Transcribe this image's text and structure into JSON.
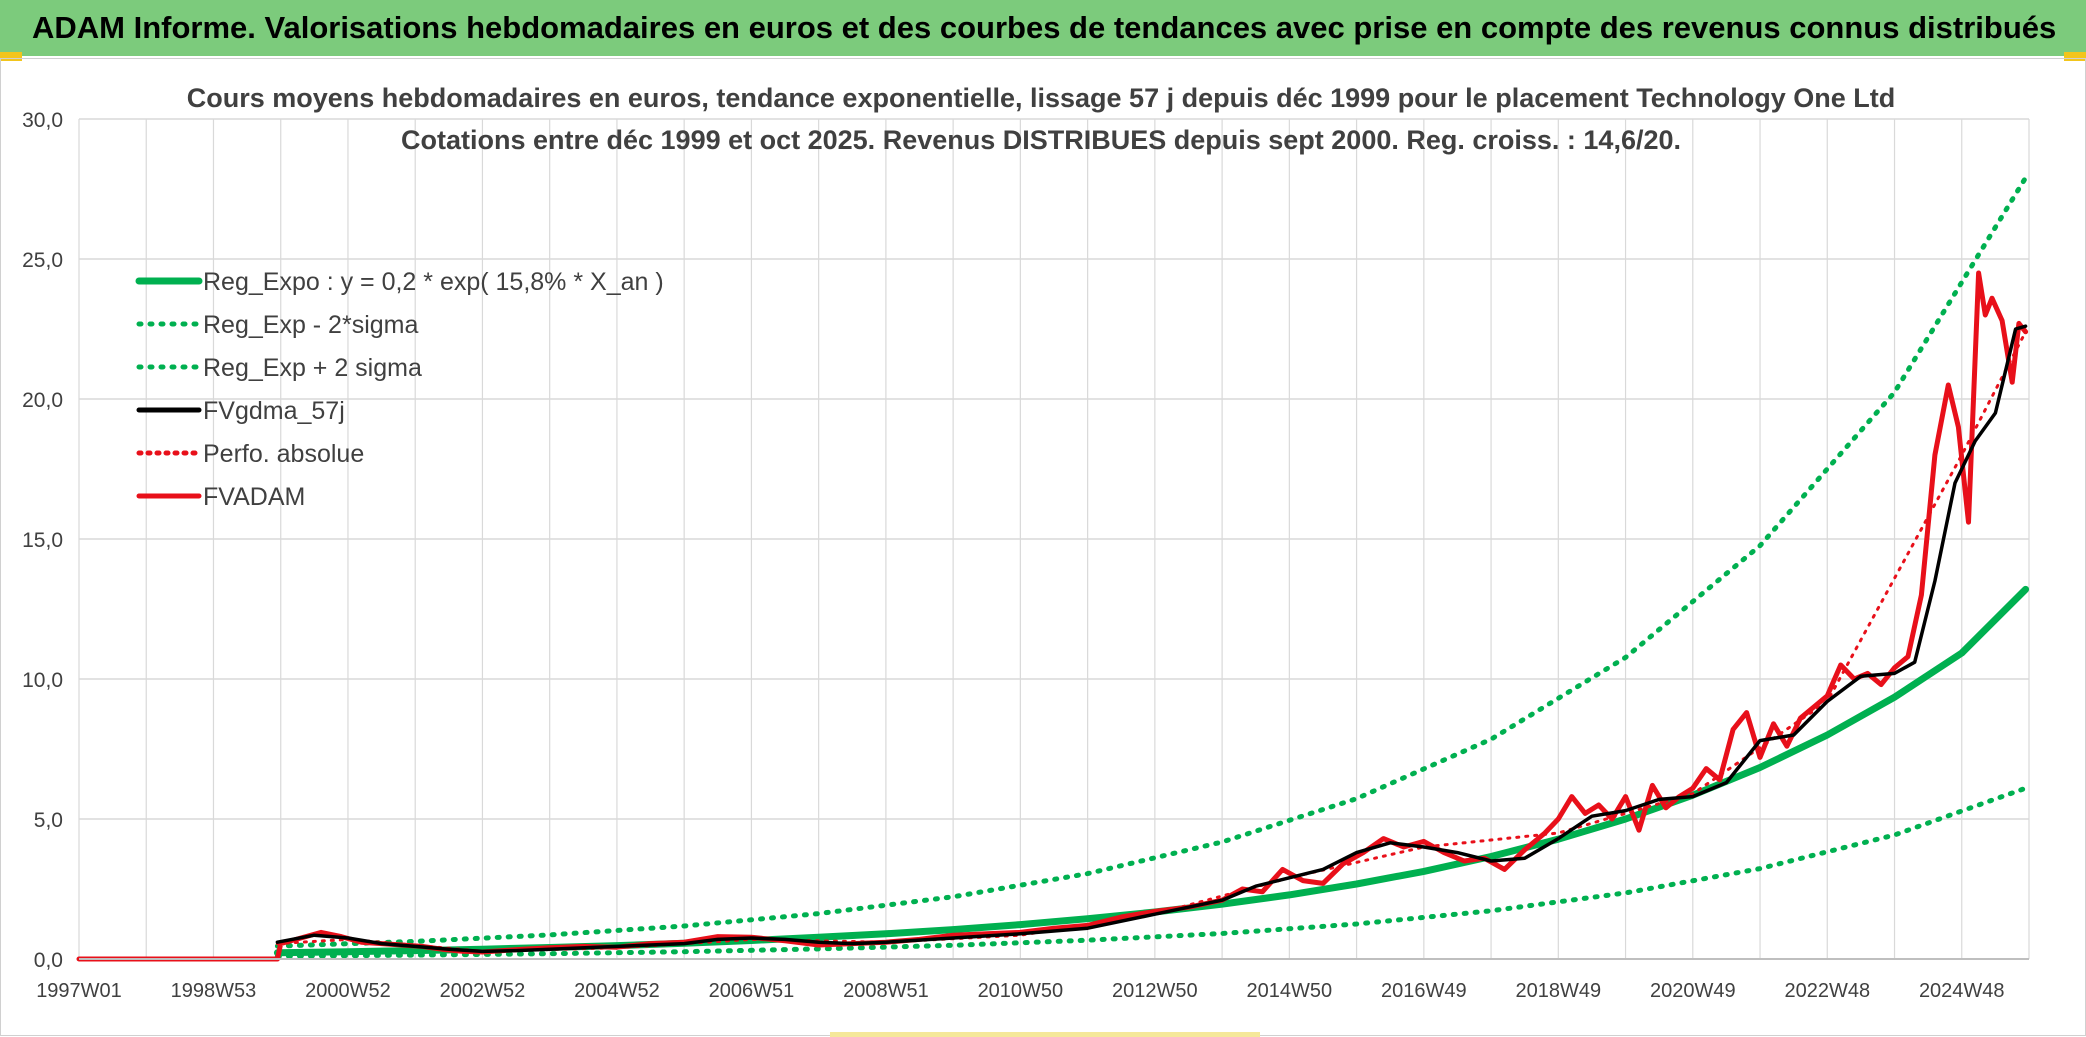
{
  "header": {
    "title": "ADAM Informe. Valorisations hebdomadaires en euros et des courbes de tendances avec prise en compte des revenus connus distribués"
  },
  "colors": {
    "banner": "#7ccb7c",
    "trend": "#00b050",
    "smooth": "#000000",
    "fvadam": "#e8101a",
    "perfo": "#e8101a",
    "grid": "#d9d9d9"
  },
  "chart_data": {
    "type": "line",
    "title": "Cours moyens hebdomadaires en euros, tendance exponentielle, lissage 57 j depuis déc 1999 pour le placement Technology One Ltd",
    "subtitle": "Cotations entre déc 1999 et oct 2025. Revenus DISTRIBUES depuis sept 2000. Reg. croiss. : 14,6/20.",
    "xlabel": "",
    "ylabel": "",
    "x_tick_labels": [
      "1997W01",
      "1998W53",
      "2000W52",
      "2002W52",
      "2004W52",
      "2006W51",
      "2008W51",
      "2010W50",
      "2012W50",
      "2014W50",
      "2016W49",
      "2018W49",
      "2020W49",
      "2022W48",
      "2024W48"
    ],
    "x_tick_years": [
      1997.0,
      1999.0,
      2001.0,
      2003.0,
      2005.0,
      2007.0,
      2009.0,
      2011.0,
      2013.0,
      2015.0,
      2017.0,
      2019.0,
      2021.0,
      2023.0,
      2025.0
    ],
    "xlim": [
      1997.0,
      2026.0
    ],
    "y_tick_labels": [
      "0,0",
      "5,0",
      "10,0",
      "15,0",
      "20,0",
      "25,0",
      "30,0"
    ],
    "ylim": [
      0,
      30
    ],
    "grid": true,
    "legend_position": "top-left",
    "series": [
      {
        "name": "Reg_Expo : y = 0,2 * exp( 15,8% *  X_an )",
        "style": "solid-thick",
        "x": [
          1999.95,
          2001,
          2002,
          2003,
          2004,
          2005,
          2006,
          2007,
          2008,
          2009,
          2010,
          2011,
          2012,
          2013,
          2014,
          2015,
          2016,
          2017,
          2018,
          2019,
          2020,
          2021,
          2022,
          2023,
          2024,
          2025,
          2025.95
        ],
        "values": [
          0.22,
          0.26,
          0.3,
          0.35,
          0.41,
          0.48,
          0.56,
          0.66,
          0.78,
          0.9,
          1.05,
          1.23,
          1.44,
          1.68,
          1.96,
          2.29,
          2.68,
          3.13,
          3.66,
          4.28,
          5.0,
          5.85,
          6.84,
          8.0,
          9.35,
          10.93,
          13.2
        ]
      },
      {
        "name": "Reg_Exp - 2*sigma",
        "style": "dotted",
        "x": [
          1999.95,
          2002,
          2004,
          2006,
          2008,
          2010,
          2012,
          2014,
          2016,
          2018,
          2020,
          2022,
          2024,
          2025.95
        ],
        "values": [
          0.1,
          0.14,
          0.19,
          0.26,
          0.36,
          0.49,
          0.67,
          0.91,
          1.25,
          1.72,
          2.36,
          3.23,
          4.43,
          6.1
        ]
      },
      {
        "name": "Reg_Exp + 2 sigma",
        "style": "dotted",
        "x": [
          1999.95,
          2002,
          2004,
          2006,
          2008,
          2010,
          2012,
          2014,
          2016,
          2018,
          2020,
          2022,
          2024,
          2025.95
        ],
        "values": [
          0.46,
          0.63,
          0.86,
          1.18,
          1.62,
          2.22,
          3.05,
          4.18,
          5.73,
          7.85,
          10.77,
          14.76,
          20.24,
          27.9
        ]
      },
      {
        "name": "FVgdma_57j",
        "style": "solid",
        "x": [
          1999.95,
          2000.5,
          2001,
          2001.5,
          2002,
          2002.5,
          2003,
          2003.5,
          2004,
          2005,
          2006,
          2006.5,
          2007,
          2007.5,
          2008,
          2008.5,
          2009,
          2010,
          2011,
          2012,
          2013,
          2014,
          2014.5,
          2015,
          2015.5,
          2016,
          2016.5,
          2017,
          2017.5,
          2018,
          2018.5,
          2019,
          2019.5,
          2020,
          2020.5,
          2021,
          2021.5,
          2022,
          2022.5,
          2023,
          2023.5,
          2024,
          2024.3,
          2024.6,
          2024.9,
          2025.2,
          2025.5,
          2025.8,
          2025.95
        ],
        "values": [
          0.6,
          0.85,
          0.75,
          0.55,
          0.45,
          0.35,
          0.27,
          0.3,
          0.35,
          0.45,
          0.55,
          0.7,
          0.75,
          0.7,
          0.6,
          0.55,
          0.6,
          0.75,
          0.9,
          1.1,
          1.6,
          2.1,
          2.6,
          2.9,
          3.2,
          3.8,
          4.15,
          4.0,
          3.8,
          3.5,
          3.6,
          4.3,
          5.1,
          5.3,
          5.7,
          5.8,
          6.3,
          7.8,
          8.0,
          9.2,
          10.1,
          10.2,
          10.6,
          13.5,
          17.0,
          18.5,
          19.5,
          22.5,
          22.6
        ]
      },
      {
        "name": "Perfo. absolue",
        "style": "dotted",
        "x": [
          1999.95,
          2001,
          2003,
          2005,
          2007,
          2009,
          2011,
          2013,
          2015,
          2017,
          2019,
          2021,
          2023,
          2025,
          2025.95
        ],
        "values": [
          0.55,
          0.7,
          0.28,
          0.4,
          0.7,
          0.6,
          0.85,
          1.6,
          2.9,
          4.0,
          4.5,
          5.9,
          9.2,
          18.0,
          22.4
        ]
      },
      {
        "name": "FVADAM",
        "style": "solid-thick",
        "x": [
          1997.0,
          1999.95,
          2000.0,
          2000.3,
          2000.6,
          2000.9,
          2001.2,
          2001.5,
          2001.8,
          2002.1,
          2002.4,
          2002.7,
          2003.0,
          2003.3,
          2003.6,
          2004.0,
          2004.5,
          2005.0,
          2005.5,
          2006.0,
          2006.5,
          2007.0,
          2007.5,
          2008.0,
          2008.5,
          2009.0,
          2009.5,
          2010.0,
          2010.5,
          2011.0,
          2011.5,
          2012.0,
          2012.5,
          2013.0,
          2013.5,
          2014.0,
          2014.3,
          2014.6,
          2014.9,
          2015.2,
          2015.5,
          2015.8,
          2016.1,
          2016.4,
          2016.7,
          2017.0,
          2017.3,
          2017.6,
          2017.9,
          2018.2,
          2018.5,
          2018.8,
          2019.0,
          2019.2,
          2019.4,
          2019.6,
          2019.8,
          2020.0,
          2020.2,
          2020.4,
          2020.6,
          2020.8,
          2021.0,
          2021.2,
          2021.4,
          2021.6,
          2021.8,
          2022.0,
          2022.2,
          2022.4,
          2022.6,
          2022.8,
          2023.0,
          2023.2,
          2023.4,
          2023.6,
          2023.8,
          2024.0,
          2024.2,
          2024.4,
          2024.6,
          2024.8,
          2024.95,
          2025.1,
          2025.25,
          2025.35,
          2025.45,
          2025.6,
          2025.75,
          2025.85,
          2025.95
        ],
        "values": [
          0.0,
          0.0,
          0.55,
          0.75,
          0.95,
          0.8,
          0.6,
          0.55,
          0.5,
          0.45,
          0.35,
          0.28,
          0.25,
          0.3,
          0.35,
          0.4,
          0.45,
          0.42,
          0.55,
          0.6,
          0.8,
          0.78,
          0.65,
          0.5,
          0.55,
          0.6,
          0.7,
          0.85,
          0.9,
          0.95,
          1.1,
          1.2,
          1.5,
          1.7,
          1.85,
          2.1,
          2.5,
          2.4,
          3.2,
          2.8,
          2.7,
          3.4,
          3.8,
          4.3,
          4.0,
          4.2,
          3.8,
          3.5,
          3.6,
          3.2,
          3.9,
          4.5,
          5.0,
          5.8,
          5.2,
          5.5,
          5.0,
          5.8,
          4.6,
          6.2,
          5.4,
          5.8,
          6.1,
          6.8,
          6.4,
          8.2,
          8.8,
          7.2,
          8.4,
          7.6,
          8.6,
          9.0,
          9.4,
          10.5,
          10.0,
          10.2,
          9.8,
          10.4,
          10.8,
          13.0,
          18.0,
          20.5,
          19.0,
          15.6,
          24.5,
          23.0,
          23.6,
          22.8,
          20.6,
          22.7,
          22.4
        ]
      }
    ]
  }
}
